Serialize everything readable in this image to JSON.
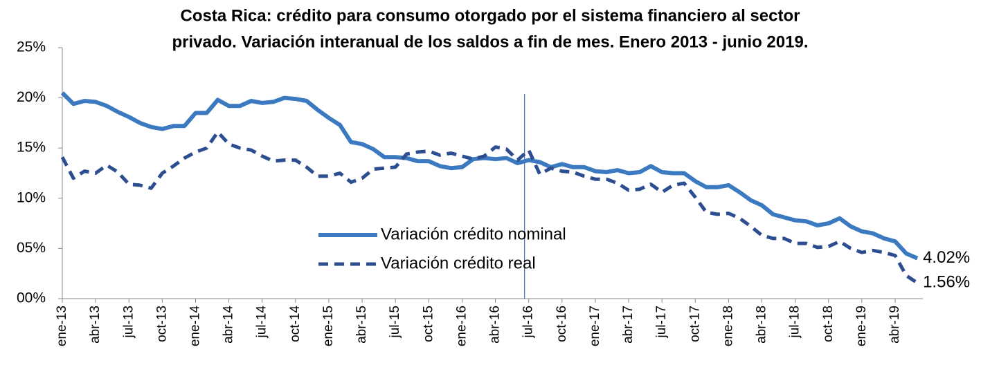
{
  "chart_data": {
    "type": "line",
    "title": [
      "Costa Rica: crédito para consumo otorgado por el sistema financiero al sector",
      "privado. Variación interanual de los saldos a fin de mes. Enero 2013 - junio 2019."
    ],
    "categories": [
      "ene-13",
      null,
      null,
      "abr-13",
      null,
      null,
      "jul-13",
      null,
      null,
      "oct-13",
      null,
      null,
      "ene-14",
      null,
      null,
      "abr-14",
      null,
      null,
      "jul-14",
      null,
      null,
      "oct-14",
      null,
      null,
      "ene-15",
      null,
      null,
      "abr-15",
      null,
      null,
      "jul-15",
      null,
      null,
      "oct-15",
      null,
      null,
      "ene-16",
      null,
      null,
      "abr-16",
      null,
      null,
      "jul-16",
      null,
      null,
      "oct-16",
      null,
      null,
      "ene-17",
      null,
      null,
      "abr-17",
      null,
      null,
      "jul-17",
      null,
      null,
      "oct-17",
      null,
      null,
      "ene-18",
      null,
      null,
      "abr-18",
      null,
      null,
      "jul-18",
      null,
      null,
      "oct-18",
      null,
      null,
      "ene-19",
      null,
      null,
      "abr-19",
      null,
      null
    ],
    "series": [
      {
        "name": "Variación crédito nominal",
        "color": "#3b79c0",
        "dashed": false,
        "values": [
          20.5,
          19.4,
          19.7,
          19.6,
          19.2,
          18.6,
          18.1,
          17.5,
          17.1,
          16.9,
          17.2,
          17.2,
          18.5,
          18.5,
          19.8,
          19.2,
          19.2,
          19.7,
          19.5,
          19.6,
          20.0,
          19.9,
          19.7,
          18.8,
          18.0,
          17.3,
          15.6,
          15.4,
          14.9,
          14.1,
          14.1,
          14.0,
          13.7,
          13.7,
          13.2,
          13.0,
          13.1,
          13.9,
          14.0,
          13.9,
          14.0,
          13.5,
          13.8,
          13.6,
          13.1,
          13.4,
          13.1,
          13.1,
          12.7,
          12.6,
          12.8,
          12.5,
          12.6,
          13.2,
          12.6,
          12.5,
          12.5,
          11.7,
          11.1,
          11.1,
          11.3,
          10.6,
          9.8,
          9.3,
          8.4,
          8.1,
          7.8,
          7.7,
          7.3,
          7.5,
          8.0,
          7.2,
          6.7,
          6.5,
          6.0,
          5.7,
          4.5,
          4.02
        ],
        "value_labels": [
          null,
          null,
          null,
          null,
          null,
          null,
          null,
          null,
          null,
          null,
          null,
          null,
          null,
          null,
          null,
          null,
          null,
          null,
          null,
          null,
          null,
          null,
          null,
          null,
          null,
          null,
          null,
          null,
          null,
          null,
          null,
          null,
          null,
          null,
          null,
          null,
          null,
          null,
          null,
          null,
          null,
          null,
          null,
          null,
          null,
          null,
          null,
          null,
          null,
          null,
          null,
          null,
          null,
          null,
          null,
          null,
          null,
          null,
          null,
          null,
          null,
          null,
          null,
          null,
          null,
          null,
          null,
          null,
          null,
          null,
          null,
          null,
          null,
          null,
          null,
          null,
          null,
          "4.02%"
        ]
      },
      {
        "name": "Variación crédito real",
        "color": "#2c4d8f",
        "dashed": true,
        "values": [
          14.1,
          12.0,
          12.7,
          12.5,
          13.3,
          12.6,
          11.4,
          11.3,
          11.0,
          12.5,
          13.2,
          14.0,
          14.6,
          15.0,
          16.6,
          15.4,
          15.0,
          14.8,
          14.2,
          13.7,
          13.8,
          13.8,
          13.1,
          12.2,
          12.2,
          12.5,
          11.6,
          12.0,
          12.9,
          13.0,
          13.1,
          14.4,
          14.6,
          14.7,
          14.3,
          14.5,
          14.2,
          13.9,
          14.2,
          15.1,
          14.9,
          13.8,
          14.8,
          12.4,
          13.0,
          12.7,
          12.6,
          12.2,
          11.9,
          11.9,
          11.5,
          10.8,
          10.9,
          11.4,
          10.6,
          11.3,
          11.5,
          10.1,
          8.6,
          8.4,
          8.5,
          8.0,
          7.2,
          6.3,
          6.0,
          6.0,
          5.5,
          5.5,
          5.1,
          5.2,
          5.7,
          5.0,
          4.6,
          4.8,
          4.6,
          4.3,
          2.3,
          1.56
        ],
        "value_labels": [
          null,
          null,
          null,
          null,
          null,
          null,
          null,
          null,
          null,
          null,
          null,
          null,
          null,
          null,
          null,
          null,
          null,
          null,
          null,
          null,
          null,
          null,
          null,
          null,
          null,
          null,
          null,
          null,
          null,
          null,
          null,
          null,
          null,
          null,
          null,
          null,
          null,
          null,
          null,
          null,
          null,
          null,
          null,
          null,
          null,
          null,
          null,
          null,
          null,
          null,
          null,
          null,
          null,
          null,
          null,
          null,
          null,
          null,
          null,
          null,
          null,
          null,
          null,
          null,
          null,
          null,
          null,
          null,
          null,
          null,
          null,
          null,
          null,
          null,
          null,
          null,
          null,
          "1.56%"
        ]
      }
    ],
    "ylim": [
      0,
      25
    ],
    "yticks": [
      {
        "value": 0,
        "label": "00%"
      },
      {
        "value": 5,
        "label": "05%"
      },
      {
        "value": 10,
        "label": "10%"
      },
      {
        "value": 15,
        "label": "15%"
      },
      {
        "value": 20,
        "label": "20%"
      },
      {
        "value": 25,
        "label": "25%"
      }
    ],
    "vline": "jul-16",
    "grid": false
  }
}
